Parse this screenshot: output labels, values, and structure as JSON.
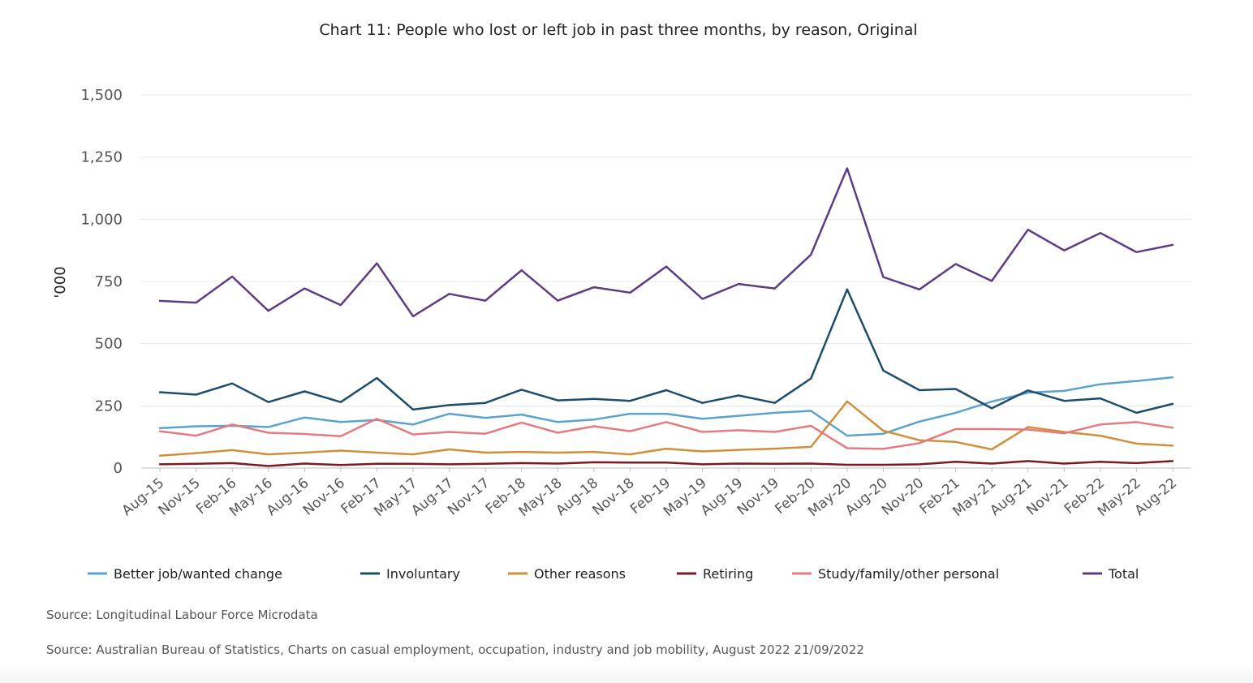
{
  "chart_data": {
    "type": "line",
    "title": "Chart 11: People who lost or left job in past three months, by reason, Original",
    "ylabel": "'000",
    "xlabel": "",
    "ylim": [
      0,
      1500
    ],
    "yticks": [
      0,
      250,
      500,
      750,
      1000,
      1250,
      1500
    ],
    "ytick_labels": [
      "0",
      "250",
      "500",
      "750",
      "1,000",
      "1,250",
      "1,500"
    ],
    "grid": true,
    "legend_position": "bottom",
    "categories": [
      "Aug-15",
      "Nov-15",
      "Feb-16",
      "May-16",
      "Aug-16",
      "Nov-16",
      "Feb-17",
      "May-17",
      "Aug-17",
      "Nov-17",
      "Feb-18",
      "May-18",
      "Aug-18",
      "Nov-18",
      "Feb-19",
      "May-19",
      "Aug-19",
      "Nov-19",
      "Feb-20",
      "May-20",
      "Aug-20",
      "Nov-20",
      "Feb-21",
      "May-21",
      "Aug-21",
      "Nov-21",
      "Feb-22",
      "May-22",
      "Aug-22"
    ],
    "series": [
      {
        "name": "Better job/wanted change",
        "color": "#5ba3cf",
        "values": [
          160,
          168,
          170,
          165,
          203,
          185,
          193,
          175,
          218,
          202,
          215,
          185,
          195,
          218,
          218,
          198,
          210,
          222,
          230,
          130,
          138,
          187,
          222,
          267,
          303,
          310,
          337,
          350,
          365
        ]
      },
      {
        "name": "Involuntary",
        "color": "#1e4d6b",
        "values": [
          305,
          295,
          340,
          265,
          308,
          265,
          362,
          235,
          253,
          262,
          315,
          272,
          278,
          270,
          313,
          262,
          292,
          262,
          360,
          718,
          392,
          313,
          318,
          240,
          312,
          270,
          280,
          222,
          258
        ]
      },
      {
        "name": "Other reasons",
        "color": "#d08f3a",
        "values": [
          50,
          60,
          72,
          55,
          62,
          70,
          62,
          55,
          75,
          62,
          65,
          62,
          65,
          55,
          78,
          67,
          73,
          78,
          85,
          268,
          150,
          112,
          105,
          75,
          165,
          145,
          130,
          98,
          90
        ]
      },
      {
        "name": "Retiring",
        "color": "#7a1a22",
        "values": [
          15,
          17,
          20,
          8,
          18,
          12,
          17,
          17,
          15,
          17,
          20,
          18,
          23,
          22,
          22,
          15,
          18,
          17,
          18,
          13,
          13,
          15,
          25,
          18,
          28,
          18,
          25,
          20,
          28
        ]
      },
      {
        "name": "Study/family/other personal",
        "color": "#e57b7e",
        "values": [
          148,
          130,
          175,
          142,
          137,
          128,
          198,
          135,
          145,
          138,
          183,
          142,
          168,
          148,
          185,
          145,
          152,
          145,
          170,
          80,
          77,
          100,
          157,
          157,
          155,
          140,
          175,
          185,
          162
        ]
      },
      {
        "name": "Total",
        "color": "#5c3d85",
        "values": [
          672,
          665,
          770,
          632,
          722,
          655,
          823,
          610,
          700,
          673,
          795,
          673,
          727,
          705,
          810,
          680,
          740,
          722,
          858,
          1205,
          768,
          718,
          820,
          752,
          958,
          875,
          945,
          868,
          897
        ]
      }
    ]
  },
  "sources": [
    "Source: Longitudinal Labour Force Microdata",
    "Source: Australian Bureau of Statistics, Charts on casual employment, occupation, industry and job mobility, August 2022 21/09/2022"
  ]
}
